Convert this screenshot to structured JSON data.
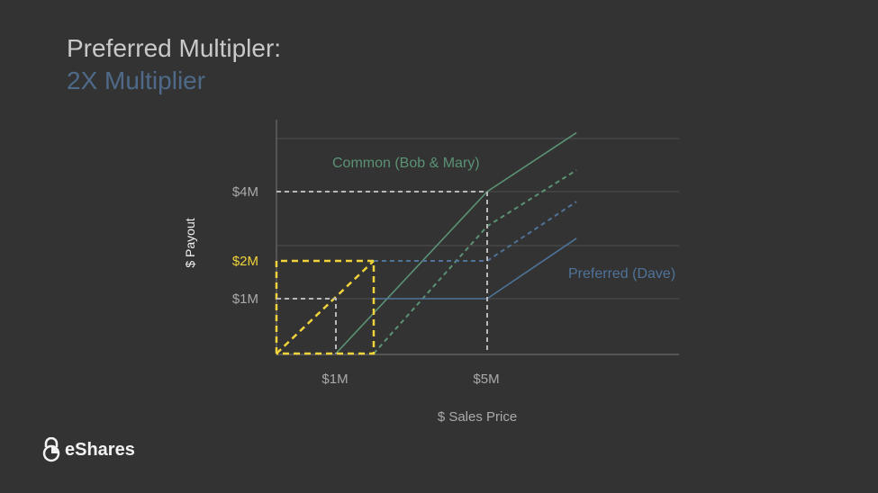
{
  "slide": {
    "title": "Preferred Multipler:",
    "subtitle": "2X Multiplier",
    "logo_text": "eShares"
  },
  "colors": {
    "background": "#333333",
    "common": "#5b9274",
    "preferred": "#4f7399",
    "highlight": "#f0d33a",
    "guide": "#b8b8b8",
    "grid": "#4a4a4a"
  },
  "chart_data": {
    "type": "line",
    "xlabel": "$ Sales Price",
    "ylabel": "$ Payout",
    "x_ticks": [
      {
        "value": 1,
        "label": "$1M"
      },
      {
        "value": 5,
        "label": "$5M"
      }
    ],
    "y_ticks": [
      {
        "value": 1,
        "label": "$1M"
      },
      {
        "value": 2,
        "label": "$2M",
        "highlight": true
      },
      {
        "value": 4,
        "label": "$4M"
      }
    ],
    "grid": true,
    "series": [
      {
        "name": "Common (Bob & Mary)",
        "style": "solid",
        "color_key": "common",
        "points": [
          [
            1,
            0
          ],
          [
            5,
            4
          ],
          [
            7.36,
            5.7
          ]
        ]
      },
      {
        "style": "dashed",
        "color_key": "common",
        "points": [
          [
            2,
            0
          ],
          [
            5,
            3
          ],
          [
            7.36,
            4.62
          ]
        ]
      },
      {
        "name": "Preferred (Dave)",
        "style": "solid",
        "color_key": "preferred",
        "points": [
          [
            2,
            1
          ],
          [
            5,
            1
          ],
          [
            7.36,
            2.65
          ]
        ]
      },
      {
        "style": "dashed",
        "color_key": "preferred",
        "points": [
          [
            2,
            2
          ],
          [
            5,
            2
          ],
          [
            7.36,
            3.71
          ]
        ]
      },
      {
        "style": "dashed",
        "color_key": "highlight",
        "points": [
          [
            0,
            0
          ],
          [
            2,
            2
          ]
        ]
      },
      {
        "style": "dashed",
        "color_key": "highlight",
        "points": [
          [
            0,
            0
          ],
          [
            0,
            2
          ],
          [
            2,
            2
          ],
          [
            2,
            0
          ],
          [
            0,
            0
          ]
        ]
      },
      {
        "style": "dashed",
        "color_key": "guide",
        "points": [
          [
            0,
            4
          ],
          [
            5,
            4
          ],
          [
            5,
            0
          ]
        ]
      },
      {
        "style": "dashed",
        "color_key": "guide",
        "points": [
          [
            0,
            1
          ],
          [
            1,
            1
          ],
          [
            1,
            0
          ]
        ]
      }
    ]
  }
}
